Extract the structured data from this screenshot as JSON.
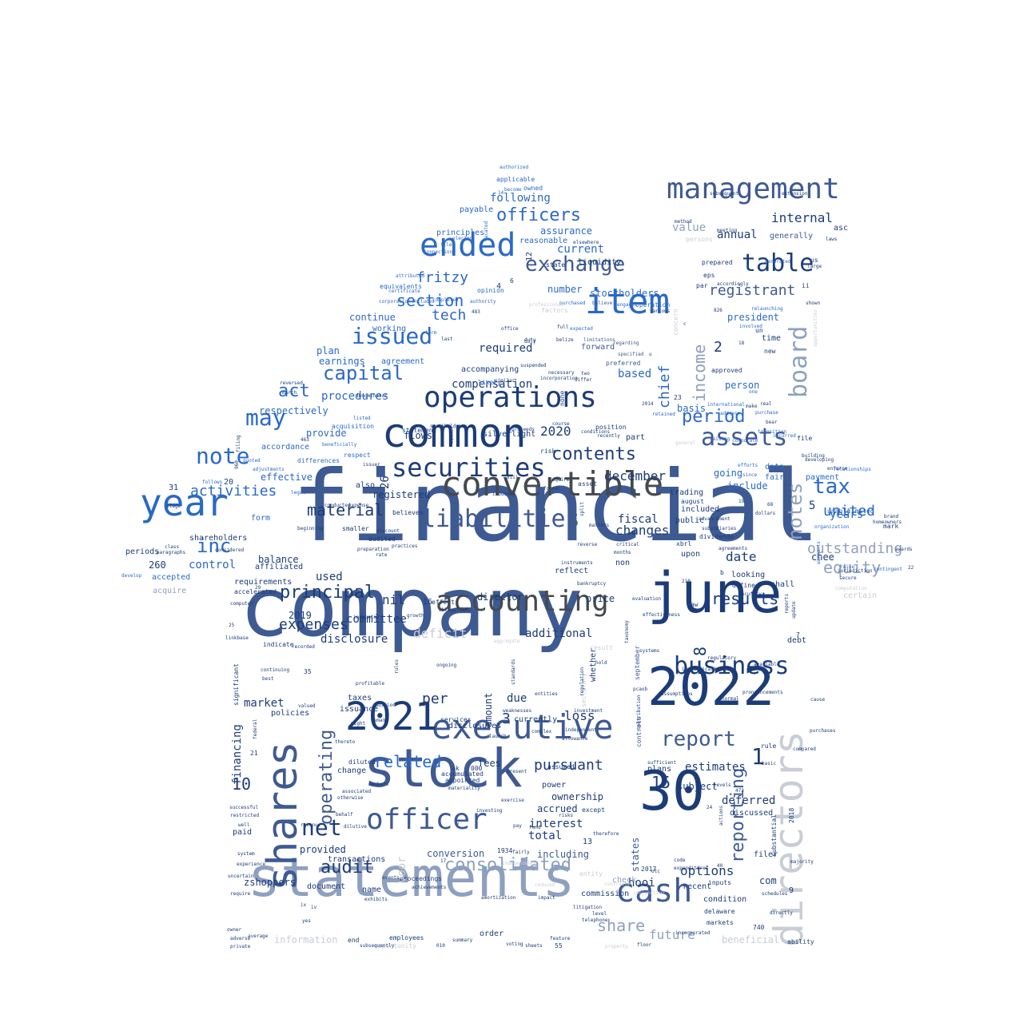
{
  "word_cloud": {
    "colors": {
      "navy": "#1c3c78",
      "steel": "#3e5a92",
      "blue": "#2a69c8",
      "bright": "#3a7ad6",
      "gray_blue": "#8ea0bf",
      "light_gray": "#c8cdd6",
      "dark_gray": "#444a4e"
    },
    "words": [
      "financial",
      "company",
      "statements",
      "june",
      "2022",
      "stock",
      "30",
      "directors",
      "shares",
      "common",
      "executive",
      "2021",
      "year",
      "convertible",
      "accounting",
      "officer",
      "operations",
      "item",
      "ended",
      "management",
      "cash",
      "securities",
      "liabilities",
      "business",
      "assets",
      "table",
      "board",
      "net",
      "issued",
      "exchange",
      "capital",
      "may",
      "note",
      "report",
      "income",
      "notes",
      "tax",
      "reporting",
      "principal",
      "consolidated",
      "results",
      "contents",
      "period",
      "officers",
      "inc",
      "equity",
      "section",
      "fritzy",
      "tech",
      "activities",
      "audit",
      "related",
      "act",
      "chief",
      "operating",
      "outstanding",
      "share",
      "material",
      "pursuant",
      "registrant",
      "internal",
      "expenses",
      "future",
      "december",
      "committee",
      "changes",
      "options",
      "united",
      "2020",
      "10",
      "15",
      "1",
      "2",
      "3",
      "5",
      "8",
      "years",
      "compensation",
      "procedures",
      "financing",
      "market",
      "current",
      "assurance",
      "following",
      "additional",
      "deficit",
      "disclosure",
      "date",
      "based",
      "fiscal",
      "per",
      "loss",
      "interest",
      "total",
      "including",
      "conversion",
      "provided",
      "zshoppers",
      "hooi",
      "delaware",
      "com",
      "chee",
      "provide",
      "effective",
      "accordance",
      "respectively",
      "control",
      "stockholders",
      "earnings",
      "agreement",
      "continue",
      "working",
      "plan",
      "value",
      "annual",
      "president",
      "person",
      "basis",
      "going",
      "include",
      "payment",
      "data",
      "fair",
      "estimates",
      "subject",
      "deferred",
      "discussed",
      "filer",
      "order",
      "name",
      "information",
      "beneficial",
      "commission",
      "document",
      "transactions",
      "proceedings",
      "check",
      "entity",
      "price",
      "director",
      "flows",
      "registered",
      "also",
      "used",
      "nil",
      "balance",
      "requirements",
      "affiliated",
      "accepted",
      "periods",
      "form",
      "shareholders",
      "260",
      "31",
      "20",
      "acquire",
      "accelerated",
      "2019",
      "taxes",
      "issuance",
      "policies",
      "due",
      "amount",
      "currently",
      "disclosures",
      "services",
      "fees",
      "ownership",
      "accrued",
      "power",
      "plans",
      "public",
      "trading",
      "included",
      "dividends",
      "mark",
      "upon",
      "debt",
      "shall",
      "looking",
      "defined",
      "time",
      "new",
      "approved",
      "prepared",
      "eps",
      "generally",
      "asc",
      "payable",
      "applicable",
      "owned",
      "principles",
      "reasonable",
      "number",
      "factors",
      "state",
      "forward",
      "required",
      "accompanying",
      "silverlight",
      "position",
      "part",
      "levels",
      "markets",
      "condition",
      "recent",
      "inputs",
      "states",
      "reflect",
      "non",
      "september",
      "systems",
      "regulatory",
      "available",
      "beneficially",
      "differences",
      "filing",
      "legal",
      "controls",
      "independent",
      "investment",
      "weaknesses",
      "demand",
      "diluted",
      "change",
      "paid",
      "restricted",
      "revenue",
      "uncertain",
      "require",
      "limited",
      "unable",
      "authorized",
      "opinion",
      "authority",
      "office",
      "duty",
      "certain",
      "computation",
      "organization",
      "purchase",
      "reverse",
      "matters",
      "critical",
      "months",
      "limitations",
      "preferred",
      "regarding",
      "specified",
      "evaluation",
      "law",
      "effectiveness",
      "identification",
      "pronouncements",
      "assumptions",
      "contribution",
      "sufficient",
      "compared",
      "purchases",
      "rule",
      "basic",
      "code",
      "expenditures",
      "incorporated",
      "telephone",
      "floor",
      "ability",
      "adverse",
      "private",
      "owner",
      "average",
      "experience",
      "system",
      "successful",
      "well",
      "members",
      "exercise",
      "risks",
      "except",
      "therefore",
      "present",
      "investing",
      "achievements",
      "events",
      "exhibits",
      "impact",
      "amortization",
      "voting",
      "employees",
      "summary",
      "end",
      "feature",
      "property",
      "2017",
      "2018",
      "740",
      "9",
      "13",
      "16",
      "17",
      "21",
      "22",
      "23",
      "24",
      "25",
      "26",
      "29",
      "35",
      "40",
      "68",
      "210",
      "473",
      "483",
      "000",
      "1934",
      "2014",
      "826",
      "960",
      "463",
      "bankruptcy",
      "instruments",
      "growth",
      "rules",
      "obligations",
      "entities",
      "standards",
      "discount",
      "rate",
      "practices",
      "preparation",
      "audited",
      "believes",
      "smaller",
      "beginning",
      "conducted",
      "expense",
      "class",
      "paragraphs",
      "considered",
      "develop",
      "computed",
      "linkbase",
      "recorded",
      "indicate",
      "valued",
      "continuing",
      "significant",
      "best",
      "thereto",
      "associated",
      "otherwise",
      "dilutive",
      "behalf",
      "materiality",
      "appointed",
      "accumulated",
      "issuer",
      "respect",
      "quoted",
      "adjustments",
      "follows",
      "stage",
      "annual",
      "acquisition",
      "listed",
      "stockholder",
      "statement",
      "risk",
      "proceeds",
      "certificate",
      "equivalents",
      "corporation",
      "includes",
      "completed",
      "attributed",
      "connection",
      "filed",
      "elected",
      "vacated",
      "become",
      "14",
      "duly",
      "suspended",
      "last",
      "term",
      "similar",
      "incorporation",
      "necessary",
      "none",
      "two",
      "differ",
      "liquidity",
      "elsewhere",
      "full",
      "expected",
      "purchased",
      "professional",
      "engaged",
      "believe",
      "various",
      "accordingly",
      "par",
      "method",
      "meeting",
      "persons",
      "subsequent",
      "extension",
      "laws",
      "large",
      "us",
      "ii",
      "shown",
      "relaunching",
      "involved",
      "opportunities",
      "un",
      "18",
      "generated",
      "one",
      "make",
      "real",
      "international",
      "bear",
      "address",
      "raising",
      "corporate",
      "transition",
      "incurred",
      "file",
      "efforts",
      "since",
      "building",
      "developing",
      "relationships",
      "homeowners",
      "brand",
      "awards",
      "contingent",
      "raise",
      "warrants",
      "xbrl",
      "august",
      "19",
      "advancement",
      "subsidiaries",
      "hold",
      "agreements",
      "security",
      "actions",
      "b",
      "cause",
      "normal",
      "retained",
      "general",
      "operation",
      "concern",
      "c",
      "u",
      "dollars",
      "belize",
      "course",
      "conditions",
      "recently",
      "either",
      "xiii",
      "formal",
      "requires",
      "asset",
      "split",
      "industry",
      "likely",
      "fairly",
      "pay",
      "fund",
      "independence",
      "reduced",
      "contracts",
      "conjunction",
      "litigation",
      "level",
      "schedules",
      "directly",
      "majority",
      "substantial",
      "ongoing",
      "aggregate",
      "result",
      "secretary",
      "whether",
      "regulation",
      "complex",
      "launch",
      "assumed",
      "allowance",
      "pcaob",
      "otc",
      "taxonomy",
      "held",
      "might",
      "addition",
      "federal",
      "profitable",
      "indicated",
      "reversed",
      "march",
      "denominator",
      "k",
      "e",
      "v",
      "ix",
      "iv",
      "yes",
      "voor",
      "reports",
      "update",
      "opportunity",
      "subsequently",
      "sheets",
      "enforce",
      "effect",
      "secure",
      "jurisdiction",
      "eight",
      "four",
      "six",
      "twelve",
      "010",
      "55",
      "12",
      "4",
      "6",
      "7"
    ]
  }
}
